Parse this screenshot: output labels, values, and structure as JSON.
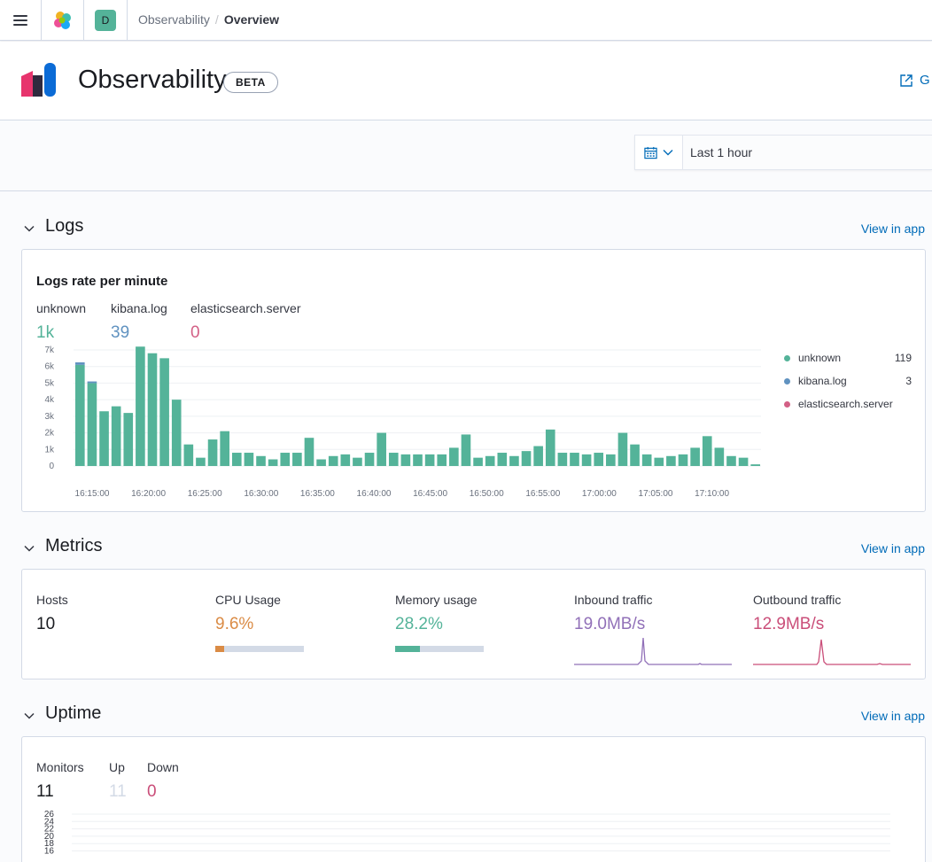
{
  "header": {
    "space_initial": "D",
    "breadcrumbs": [
      "Observability",
      "Overview"
    ],
    "app_title": "Observability",
    "badge": "BETA",
    "external_link": "G"
  },
  "date_picker": {
    "range": "Last 1 hour"
  },
  "logs": {
    "section_title": "Logs",
    "view_link": "View in app",
    "chart_title": "Logs rate per minute",
    "stats": [
      {
        "label": "unknown",
        "value": "1k",
        "color": "#54b399"
      },
      {
        "label": "kibana.log",
        "value": "39",
        "color": "#6092c0"
      },
      {
        "label": "elasticsearch.server",
        "value": "0",
        "color": "#d36086"
      }
    ],
    "legend": [
      {
        "name": "unknown",
        "value": "119",
        "color": "#54b399"
      },
      {
        "name": "kibana.log",
        "value": "3",
        "color": "#6092c0"
      },
      {
        "name": "elasticsearch.server",
        "value": "",
        "color": "#d36086"
      }
    ]
  },
  "chart_data": {
    "type": "bar",
    "title": "Logs rate per minute",
    "xlabel": "",
    "ylabel": "",
    "ylim": [
      0,
      7000
    ],
    "y_ticks": [
      "0",
      "1k",
      "2k",
      "3k",
      "4k",
      "5k",
      "6k",
      "7k"
    ],
    "x_ticks": [
      "16:15:00",
      "16:20:00",
      "16:25:00",
      "16:30:00",
      "16:35:00",
      "16:40:00",
      "16:45:00",
      "16:50:00",
      "16:55:00",
      "17:00:00",
      "17:05:00",
      "17:10:00"
    ],
    "series": [
      {
        "name": "unknown",
        "color": "#54b399",
        "values": [
          6100,
          5000,
          3300,
          3600,
          3200,
          7200,
          6800,
          6500,
          4000,
          1300,
          500,
          1600,
          2100,
          800,
          800,
          600,
          400,
          800,
          800,
          1700,
          400,
          600,
          700,
          500,
          800,
          2000,
          800,
          700,
          700,
          700,
          700,
          1100,
          1900,
          500,
          600,
          800,
          600,
          900,
          1200,
          2200,
          800,
          800,
          700,
          800,
          700,
          2000,
          1300,
          700,
          500,
          600,
          700,
          1100,
          1800,
          1100,
          600,
          500,
          100
        ]
      },
      {
        "name": "kibana.log",
        "color": "#6092c0",
        "values": [
          150,
          100,
          0,
          0,
          0,
          0,
          0,
          0,
          0,
          0,
          0,
          0,
          0,
          0,
          0,
          0,
          0,
          0,
          0,
          0,
          0,
          0,
          0,
          0,
          0,
          0,
          0,
          0,
          0,
          0,
          0,
          0,
          0,
          0,
          0,
          0,
          0,
          0,
          0,
          0,
          0,
          0,
          0,
          0,
          0,
          0,
          0,
          0,
          0,
          0,
          0,
          0,
          0,
          0,
          0,
          0,
          0
        ]
      },
      {
        "name": "elasticsearch.server",
        "color": "#d36086",
        "values": [
          0,
          0,
          0,
          0,
          0,
          0,
          0,
          0,
          0,
          0,
          0,
          0,
          0,
          0,
          0,
          0,
          0,
          0,
          0,
          0,
          0,
          0,
          0,
          0,
          0,
          0,
          0,
          0,
          0,
          0,
          0,
          0,
          0,
          0,
          0,
          0,
          0,
          0,
          0,
          0,
          0,
          0,
          0,
          0,
          0,
          0,
          0,
          0,
          0,
          0,
          0,
          0,
          0,
          0,
          0,
          0,
          0
        ]
      }
    ]
  },
  "metrics": {
    "section_title": "Metrics",
    "view_link": "View in app",
    "hosts": {
      "label": "Hosts",
      "value": "10"
    },
    "cpu": {
      "label": "CPU Usage",
      "value": "9.6%",
      "fraction": 0.096,
      "color": "#da8b45"
    },
    "memory": {
      "label": "Memory usage",
      "value": "28.2%",
      "fraction": 0.282,
      "color": "#54b399"
    },
    "inbound": {
      "label": "Inbound traffic",
      "value": "19.0MB/s",
      "color": "#9170b8"
    },
    "outbound": {
      "label": "Outbound traffic",
      "value": "12.9MB/s",
      "color": "#ca4e79"
    }
  },
  "uptime": {
    "section_title": "Uptime",
    "view_link": "View in app",
    "monitors": {
      "label": "Monitors",
      "value": "11"
    },
    "up": {
      "label": "Up",
      "value": "11"
    },
    "down": {
      "label": "Down",
      "value": "0"
    },
    "y_ticks": [
      "26",
      "24",
      "22",
      "20",
      "18",
      "16"
    ]
  }
}
